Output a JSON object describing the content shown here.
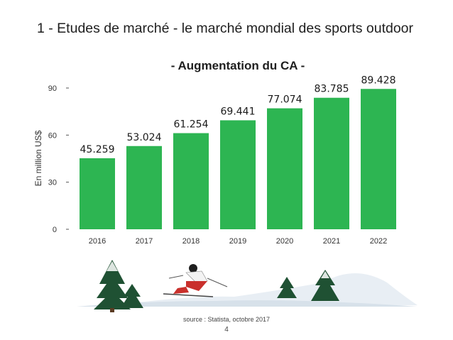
{
  "slide": {
    "title": "1 - Etudes de marché - le marché mondial des sports outdoor",
    "source": "source : Statista, octobre 2017",
    "page_number": "4"
  },
  "chart_data": {
    "type": "bar",
    "title": "- Augmentation du CA -",
    "xlabel": "",
    "ylabel": "En million US$",
    "categories": [
      "2016",
      "2017",
      "2018",
      "2019",
      "2020",
      "2021",
      "2022"
    ],
    "values": [
      45.259,
      53.024,
      61.254,
      69.441,
      77.074,
      83.785,
      89.428
    ],
    "value_labels": [
      "45.259",
      "53.024",
      "61.254",
      "69.441",
      "77.074",
      "83.785",
      "89.428"
    ],
    "ylim": [
      0,
      90
    ],
    "yticks": [
      0,
      30,
      60,
      90
    ],
    "grid": false,
    "legend": "none",
    "bar_color": "#2db552"
  },
  "illustration": {
    "description_icon": "skier-in-snowy-landscape-icon"
  }
}
